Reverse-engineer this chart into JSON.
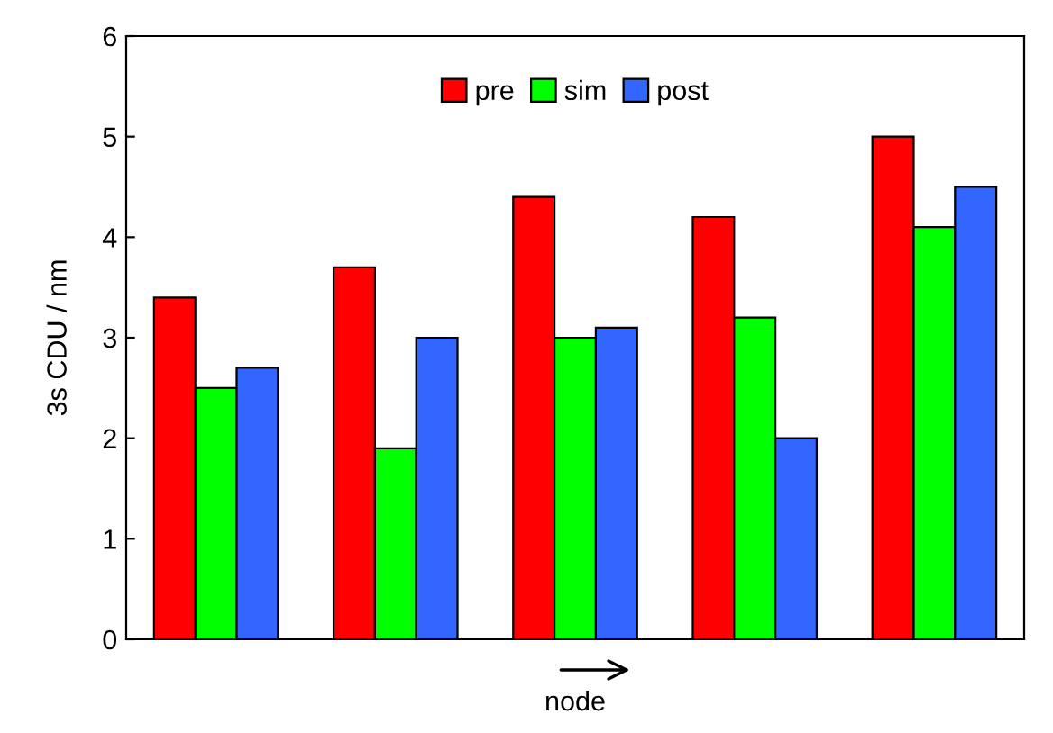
{
  "chart_data": {
    "type": "bar",
    "ylabel": "3s CDU / nm",
    "xlabel": "node",
    "categories": [
      null,
      null,
      null,
      null,
      null
    ],
    "series": [
      {
        "name": "pre",
        "color": "#ff0000",
        "values": [
          3.4,
          3.7,
          4.4,
          4.2,
          5.0
        ]
      },
      {
        "name": "sim",
        "color": "#00ff00",
        "values": [
          2.5,
          1.9,
          3.0,
          3.2,
          4.1
        ]
      },
      {
        "name": "post",
        "color": "#3366ff",
        "values": [
          2.7,
          3.0,
          3.1,
          2.0,
          4.5
        ]
      }
    ],
    "ylim": [
      0,
      6
    ],
    "yticks": [
      0,
      1,
      2,
      3,
      4,
      5,
      6
    ],
    "grid": false,
    "legend": "top"
  }
}
